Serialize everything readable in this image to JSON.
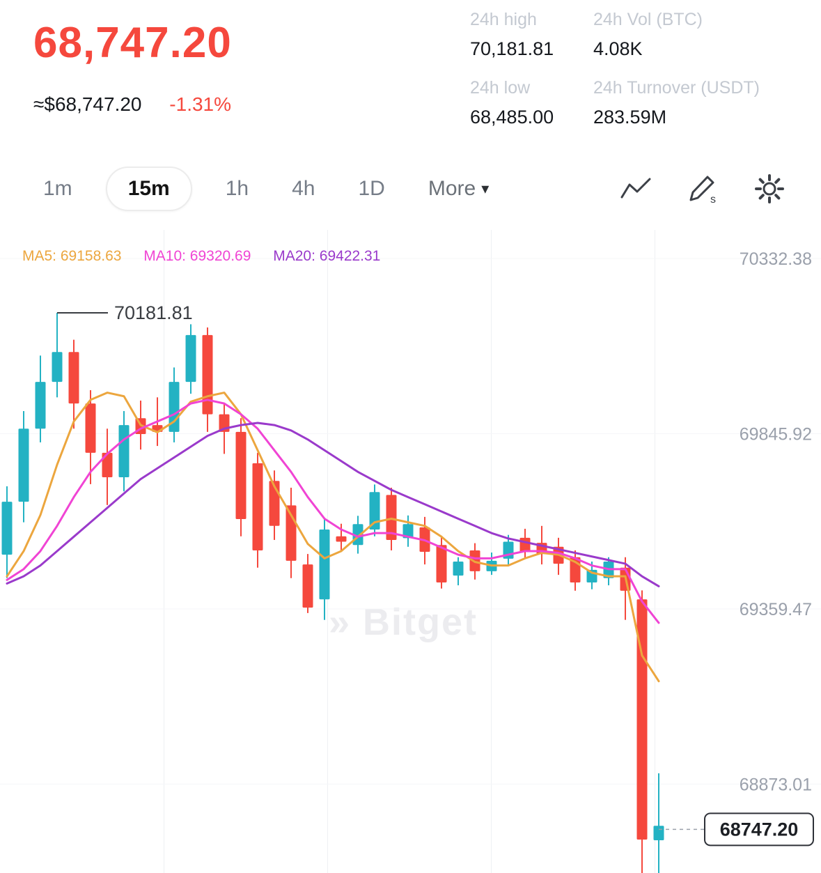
{
  "header": {
    "price": "68,747.20",
    "price_usd": "≈$68,747.20",
    "change_pct": "-1.31%",
    "stats": [
      {
        "label": "24h high",
        "value": "70,181.81"
      },
      {
        "label": "24h Vol (BTC)",
        "value": "4.08K"
      },
      {
        "label": "24h low",
        "value": "68,485.00"
      },
      {
        "label": "24h Turnover (USDT)",
        "value": "283.59M"
      }
    ]
  },
  "toolbar": {
    "timeframes": [
      "1m",
      "15m",
      "1h",
      "4h",
      "1D"
    ],
    "active_timeframe": "15m",
    "more_label": "More",
    "chevron_down": "▾"
  },
  "chart_data": {
    "type": "candlestick",
    "watermark": "» Bitget",
    "legend": {
      "ma5": "MA5: 69158.63",
      "ma10": "MA10: 69320.69",
      "ma20": "MA20: 69422.31"
    },
    "colors": {
      "up": "#23b2c3",
      "down": "#f5483d",
      "ma5": "#eca63e",
      "ma10": "#f044d4",
      "ma20": "#9a3acb",
      "accent_red": "#f5483d",
      "axis_text": "#9aa0ab"
    },
    "y_axis": {
      "min": 68626,
      "max": 70412,
      "ticks": [
        70332.38,
        69845.92,
        69359.47,
        68873.01
      ]
    },
    "grid": {
      "vlines": [
        235.5,
        470.5,
        705.5,
        940.5
      ]
    },
    "high_annotation": {
      "price": 70181.81,
      "label": "70181.81"
    },
    "last_price": {
      "value": 68747.2,
      "label": "68747.20"
    },
    "candles": [
      [
        69510,
        69700,
        69445,
        69657
      ],
      [
        69657,
        69909,
        69600,
        69860
      ],
      [
        69860,
        70063,
        69822,
        69990
      ],
      [
        69990,
        70181.81,
        69947,
        70073
      ],
      [
        70073,
        70107,
        69860,
        69930
      ],
      [
        69930,
        69967,
        69706,
        69793
      ],
      [
        69793,
        69860,
        69648,
        69725
      ],
      [
        69725,
        69909,
        69686,
        69870
      ],
      [
        69889,
        69938,
        69802,
        69845
      ],
      [
        69870,
        69947,
        69812,
        69851
      ],
      [
        69851,
        70030,
        69822,
        69990
      ],
      [
        69990,
        70150,
        69957,
        70120
      ],
      [
        70120,
        70141,
        69851,
        69900
      ],
      [
        69900,
        69928,
        69790,
        69851
      ],
      [
        69851,
        69889,
        69561,
        69609
      ],
      [
        69764,
        69793,
        69474,
        69522
      ],
      [
        69715,
        69744,
        69551,
        69590
      ],
      [
        69647,
        69696,
        69445,
        69493
      ],
      [
        69483,
        69512,
        69348,
        69363
      ],
      [
        69386,
        69609,
        69329,
        69580
      ],
      [
        69561,
        69596,
        69522,
        69546
      ],
      [
        69537,
        69618,
        69513,
        69595
      ],
      [
        69580,
        69705,
        69561,
        69684
      ],
      [
        69676,
        69696,
        69522,
        69551
      ],
      [
        69556,
        69619,
        69532,
        69595
      ],
      [
        69586,
        69615,
        69483,
        69518
      ],
      [
        69537,
        69561,
        69416,
        69433
      ],
      [
        69452,
        69503,
        69425,
        69491
      ],
      [
        69522,
        69542,
        69441,
        69464
      ],
      [
        69464,
        69516,
        69454,
        69493
      ],
      [
        69499,
        69565,
        69479,
        69546
      ],
      [
        69557,
        69582,
        69499,
        69518
      ],
      [
        69543,
        69590,
        69483,
        69512
      ],
      [
        69532,
        69557,
        69454,
        69485
      ],
      [
        69503,
        69522,
        69410,
        69433
      ],
      [
        69433,
        69491,
        69414,
        69468
      ],
      [
        69445,
        69503,
        69425,
        69491
      ],
      [
        69474,
        69503,
        69329,
        69410
      ],
      [
        69386,
        69411,
        68485,
        68719
      ],
      [
        68717,
        68903,
        68610,
        68757
      ]
    ],
    "ma5": [
      69450,
      69520,
      69620,
      69760,
      69880,
      69940,
      69960,
      69950,
      69870,
      69850,
      69880,
      69935,
      69950,
      69960,
      69900,
      69800,
      69700,
      69620,
      69540,
      69500,
      69520,
      69560,
      69600,
      69610,
      69600,
      69590,
      69560,
      69520,
      69490,
      69480,
      69480,
      69500,
      69515,
      69510,
      69490,
      69460,
      69450,
      69450,
      69230,
      69158.63
    ],
    "ma10": [
      69440,
      69470,
      69520,
      69590,
      69670,
      69740,
      69790,
      69830,
      69860,
      69880,
      69900,
      69930,
      69940,
      69930,
      69900,
      69860,
      69800,
      69740,
      69670,
      69610,
      69580,
      69560,
      69570,
      69570,
      69560,
      69550,
      69530,
      69510,
      69500,
      69500,
      69510,
      69520,
      69520,
      69515,
      69500,
      69480,
      69470,
      69470,
      69380,
      69320.69
    ],
    "ma20": [
      69430,
      69450,
      69480,
      69520,
      69560,
      69600,
      69640,
      69680,
      69720,
      69750,
      69780,
      69810,
      69840,
      69860,
      69870,
      69876,
      69870,
      69855,
      69830,
      69800,
      69770,
      69740,
      69715,
      69690,
      69670,
      69650,
      69630,
      69610,
      69590,
      69570,
      69555,
      69545,
      69535,
      69525,
      69515,
      69505,
      69495,
      69485,
      69450,
      69422.31
    ]
  }
}
